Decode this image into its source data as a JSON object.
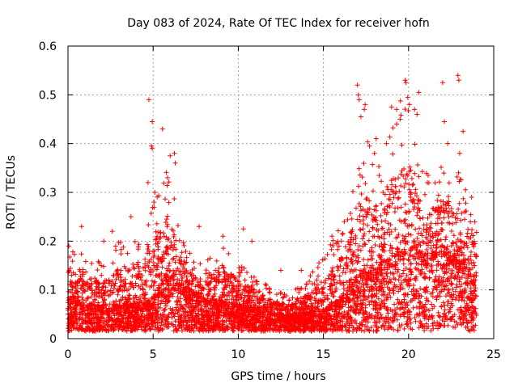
{
  "chart_data": {
    "type": "scatter",
    "title": "Day 083 of 2024, Rate Of TEC Index for receiver hofn",
    "xlabel": "GPS time / hours",
    "ylabel": "ROTI / TECUs",
    "xlim": [
      0,
      25
    ],
    "ylim": [
      0,
      0.6
    ],
    "x_ticks": [
      0,
      5,
      10,
      15,
      20,
      25
    ],
    "y_ticks": [
      0,
      0.1,
      0.2,
      0.3,
      0.4,
      0.5,
      0.6
    ],
    "x_tick_labels": [
      "0",
      "5",
      "10",
      "15",
      "20",
      "25"
    ],
    "y_tick_labels": [
      "0",
      "0.1",
      "0.2",
      "0.3",
      "0.4",
      "0.5",
      "0.6"
    ],
    "grid": true,
    "marker": "plus",
    "series_color": "#ff0000",
    "envelope": {
      "description": "approximate typical (median) and upper-envelope ROTI by hour",
      "hours": [
        0,
        1,
        2,
        3,
        4,
        5,
        5.5,
        6,
        6.5,
        7,
        8,
        9,
        10,
        11,
        12,
        13,
        14,
        15,
        16,
        16.5,
        17,
        17.5,
        18,
        18.5,
        19,
        19.5,
        20,
        20.5,
        21,
        21.5,
        22,
        22.5,
        23,
        23.5,
        24
      ],
      "typical": [
        0.07,
        0.06,
        0.055,
        0.06,
        0.06,
        0.07,
        0.1,
        0.13,
        0.1,
        0.08,
        0.07,
        0.065,
        0.06,
        0.055,
        0.045,
        0.04,
        0.045,
        0.05,
        0.07,
        0.09,
        0.11,
        0.12,
        0.12,
        0.13,
        0.14,
        0.16,
        0.18,
        0.17,
        0.13,
        0.15,
        0.17,
        0.15,
        0.14,
        0.12,
        0.1
      ],
      "upper": [
        0.19,
        0.17,
        0.16,
        0.2,
        0.2,
        0.3,
        0.33,
        0.38,
        0.22,
        0.18,
        0.15,
        0.21,
        0.16,
        0.13,
        0.1,
        0.09,
        0.12,
        0.17,
        0.23,
        0.29,
        0.35,
        0.42,
        0.38,
        0.35,
        0.45,
        0.49,
        0.47,
        0.4,
        0.34,
        0.35,
        0.36,
        0.36,
        0.36,
        0.3,
        0.25
      ]
    },
    "outliers": [
      {
        "x": 0.05,
        "y": 0.19
      },
      {
        "x": 0.8,
        "y": 0.23
      },
      {
        "x": 2.1,
        "y": 0.2
      },
      {
        "x": 2.6,
        "y": 0.22
      },
      {
        "x": 3.7,
        "y": 0.25
      },
      {
        "x": 4.7,
        "y": 0.32
      },
      {
        "x": 4.75,
        "y": 0.49
      },
      {
        "x": 4.95,
        "y": 0.445
      },
      {
        "x": 4.9,
        "y": 0.395
      },
      {
        "x": 4.95,
        "y": 0.39
      },
      {
        "x": 5.05,
        "y": 0.28
      },
      {
        "x": 5.1,
        "y": 0.3
      },
      {
        "x": 5.55,
        "y": 0.43
      },
      {
        "x": 5.85,
        "y": 0.33
      },
      {
        "x": 6.0,
        "y": 0.375
      },
      {
        "x": 6.25,
        "y": 0.38
      },
      {
        "x": 6.3,
        "y": 0.36
      },
      {
        "x": 7.7,
        "y": 0.23
      },
      {
        "x": 9.1,
        "y": 0.21
      },
      {
        "x": 10.3,
        "y": 0.225
      },
      {
        "x": 10.8,
        "y": 0.2
      },
      {
        "x": 12.5,
        "y": 0.14
      },
      {
        "x": 13.7,
        "y": 0.14
      },
      {
        "x": 15.5,
        "y": 0.21
      },
      {
        "x": 17.0,
        "y": 0.52
      },
      {
        "x": 17.05,
        "y": 0.5
      },
      {
        "x": 17.1,
        "y": 0.49
      },
      {
        "x": 17.2,
        "y": 0.455
      },
      {
        "x": 17.45,
        "y": 0.48
      },
      {
        "x": 17.4,
        "y": 0.47
      },
      {
        "x": 18.0,
        "y": 0.38
      },
      {
        "x": 18.1,
        "y": 0.41
      },
      {
        "x": 18.5,
        "y": 0.3
      },
      {
        "x": 18.7,
        "y": 0.4
      },
      {
        "x": 19.0,
        "y": 0.475
      },
      {
        "x": 19.3,
        "y": 0.47
      },
      {
        "x": 19.3,
        "y": 0.44
      },
      {
        "x": 19.5,
        "y": 0.45
      },
      {
        "x": 19.8,
        "y": 0.53
      },
      {
        "x": 19.85,
        "y": 0.525
      },
      {
        "x": 19.95,
        "y": 0.495
      },
      {
        "x": 20.05,
        "y": 0.48
      },
      {
        "x": 20.35,
        "y": 0.47
      },
      {
        "x": 20.6,
        "y": 0.505
      },
      {
        "x": 20.5,
        "y": 0.46
      },
      {
        "x": 22.0,
        "y": 0.525
      },
      {
        "x": 22.1,
        "y": 0.445
      },
      {
        "x": 22.3,
        "y": 0.4
      },
      {
        "x": 22.9,
        "y": 0.54
      },
      {
        "x": 22.95,
        "y": 0.53
      },
      {
        "x": 23.2,
        "y": 0.425
      },
      {
        "x": 23.0,
        "y": 0.38
      },
      {
        "x": 23.7,
        "y": 0.29
      }
    ]
  }
}
